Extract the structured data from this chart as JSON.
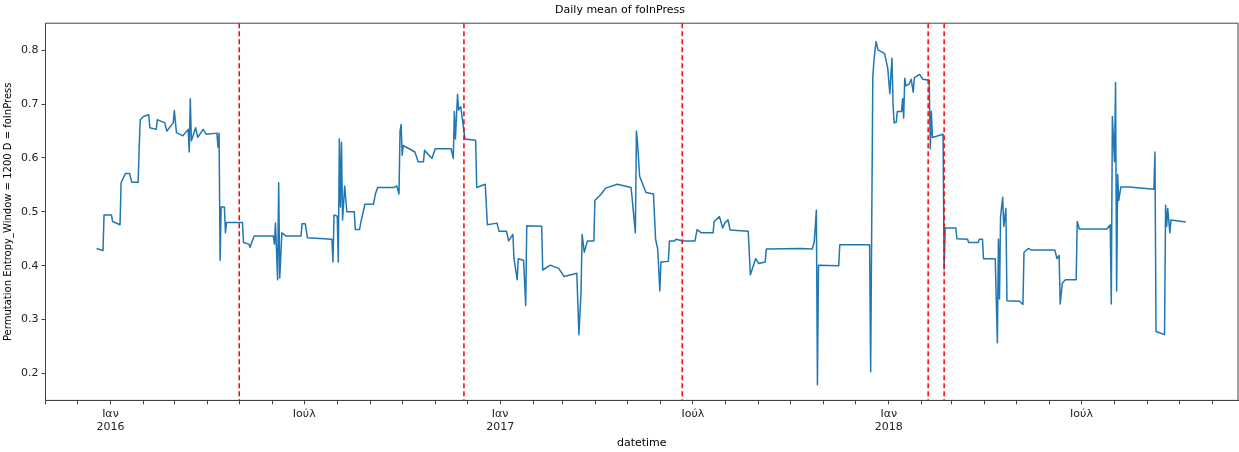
{
  "chart_data": {
    "type": "line",
    "title": "Daily mean of foInPress",
    "xlabel": "datetime",
    "ylabel": "Permutation Entropy_Window = 1200 D = foInPress",
    "xlim": [
      "2015-11-01",
      "2018-11-25"
    ],
    "xticks": [
      {
        "value": "2015-11-01",
        "label": null
      },
      {
        "value": "2015-12-01",
        "label": null
      },
      {
        "value": "2016-01-01",
        "label": "Ιαν\n2016"
      },
      {
        "value": "2016-02-01",
        "label": null
      },
      {
        "value": "2016-03-01",
        "label": null
      },
      {
        "value": "2016-04-01",
        "label": null
      },
      {
        "value": "2016-05-01",
        "label": null
      },
      {
        "value": "2016-06-01",
        "label": null
      },
      {
        "value": "2016-07-01",
        "label": "Ιούλ"
      },
      {
        "value": "2016-08-01",
        "label": null
      },
      {
        "value": "2016-09-01",
        "label": null
      },
      {
        "value": "2016-10-01",
        "label": null
      },
      {
        "value": "2016-11-01",
        "label": null
      },
      {
        "value": "2016-12-01",
        "label": null
      },
      {
        "value": "2017-01-01",
        "label": "Ιαν\n2017"
      },
      {
        "value": "2017-02-01",
        "label": null
      },
      {
        "value": "2017-03-01",
        "label": null
      },
      {
        "value": "2017-04-01",
        "label": null
      },
      {
        "value": "2017-05-01",
        "label": null
      },
      {
        "value": "2017-06-01",
        "label": null
      },
      {
        "value": "2017-07-01",
        "label": "Ιούλ"
      },
      {
        "value": "2017-08-01",
        "label": null
      },
      {
        "value": "2017-09-01",
        "label": null
      },
      {
        "value": "2017-10-01",
        "label": null
      },
      {
        "value": "2017-11-01",
        "label": null
      },
      {
        "value": "2017-12-01",
        "label": null
      },
      {
        "value": "2018-01-01",
        "label": "Ιαν\n2018"
      },
      {
        "value": "2018-02-01",
        "label": null
      },
      {
        "value": "2018-03-01",
        "label": null
      },
      {
        "value": "2018-04-01",
        "label": null
      },
      {
        "value": "2018-05-01",
        "label": null
      },
      {
        "value": "2018-06-01",
        "label": null
      },
      {
        "value": "2018-07-01",
        "label": "Ιούλ"
      },
      {
        "value": "2018-08-01",
        "label": null
      },
      {
        "value": "2018-09-01",
        "label": null
      },
      {
        "value": "2018-10-01",
        "label": null
      },
      {
        "value": "2018-11-01",
        "label": null
      }
    ],
    "ylim": [
      0.15,
      0.85
    ],
    "yticks": [
      0.2,
      0.3,
      0.4,
      0.5,
      0.6,
      0.7,
      0.8
    ],
    "grid": false,
    "legend": false,
    "marker": "none",
    "line_style": "solid",
    "ref_lines": [
      {
        "axis": "x",
        "value": "2016-05-01",
        "color": "#ff0000",
        "line_style": "dashed"
      },
      {
        "axis": "x",
        "value": "2016-11-28",
        "color": "#ff0000",
        "line_style": "dashed"
      },
      {
        "axis": "x",
        "value": "2017-06-21",
        "color": "#ff0000",
        "line_style": "dashed"
      },
      {
        "axis": "x",
        "value": "2018-02-07",
        "color": "#ff0000",
        "line_style": "dashed"
      },
      {
        "axis": "x",
        "value": "2018-02-22",
        "color": "#ff0000",
        "line_style": "dashed"
      }
    ],
    "series": [
      {
        "color": "#1f77b4",
        "x": [
          "2015-12-19",
          "2015-12-25",
          "2015-12-26",
          "2016-01-02",
          "2016-01-03",
          "2016-01-10",
          "2016-01-11",
          "2016-01-15",
          "2016-01-19",
          "2016-01-21",
          "2016-01-27",
          "2016-01-28",
          "2016-01-29",
          "2016-02-01",
          "2016-02-06",
          "2016-02-07",
          "2016-02-13",
          "2016-02-14",
          "2016-02-21",
          "2016-02-23",
          "2016-02-29",
          "2016-03-01",
          "2016-03-03",
          "2016-03-09",
          "2016-03-14",
          "2016-03-15",
          "2016-03-16",
          "2016-03-17",
          "2016-03-21",
          "2016-03-23",
          "2016-03-28",
          "2016-03-31",
          "2016-04-10",
          "2016-04-11",
          "2016-04-12",
          "2016-04-13",
          "2016-04-14",
          "2016-04-17",
          "2016-04-18",
          "2016-04-19",
          "2016-05-04",
          "2016-05-05",
          "2016-05-10",
          "2016-05-11",
          "2016-05-15",
          "2016-06-02",
          "2016-06-03",
          "2016-06-04",
          "2016-06-06",
          "2016-06-07",
          "2016-06-08",
          "2016-06-10",
          "2016-06-14",
          "2016-06-28",
          "2016-06-29",
          "2016-07-02",
          "2016-07-04",
          "2016-07-27",
          "2016-07-28",
          "2016-07-29",
          "2016-08-01",
          "2016-08-02",
          "2016-08-03",
          "2016-08-04",
          "2016-08-05",
          "2016-08-06",
          "2016-08-08",
          "2016-08-10",
          "2016-08-17",
          "2016-08-18",
          "2016-08-22",
          "2016-08-23",
          "2016-08-27",
          "2016-09-04",
          "2016-09-06",
          "2016-09-08",
          "2016-09-23",
          "2016-09-26",
          "2016-09-28",
          "2016-09-29",
          "2016-09-30",
          "2016-10-01",
          "2016-10-02",
          "2016-10-13",
          "2016-10-16",
          "2016-10-21",
          "2016-10-22",
          "2016-10-29",
          "2016-11-01",
          "2016-11-16",
          "2016-11-18",
          "2016-11-19",
          "2016-11-20",
          "2016-11-22",
          "2016-11-23",
          "2016-11-25",
          "2016-11-29",
          "2016-12-09",
          "2016-12-10",
          "2016-12-18",
          "2016-12-20",
          "2016-12-29",
          "2016-12-31",
          "2017-01-07",
          "2017-01-09",
          "2017-01-13",
          "2017-01-14",
          "2017-01-17",
          "2017-01-18",
          "2017-01-23",
          "2017-01-25",
          "2017-01-26",
          "2017-02-09",
          "2017-02-10",
          "2017-02-17",
          "2017-02-25",
          "2017-03-02",
          "2017-03-14",
          "2017-03-16",
          "2017-03-18",
          "2017-03-19",
          "2017-03-21",
          "2017-03-24",
          "2017-03-30",
          "2017-03-31",
          "2017-04-06",
          "2017-04-10",
          "2017-04-21",
          "2017-05-04",
          "2017-05-08",
          "2017-05-09",
          "2017-05-10",
          "2017-05-12",
          "2017-05-18",
          "2017-05-25",
          "2017-05-27",
          "2017-05-29",
          "2017-05-31",
          "2017-06-01",
          "2017-06-08",
          "2017-06-09",
          "2017-06-14",
          "2017-06-15",
          "2017-06-22",
          "2017-07-03",
          "2017-07-05",
          "2017-07-09",
          "2017-07-20",
          "2017-07-21",
          "2017-07-26",
          "2017-07-29",
          "2017-07-31",
          "2017-08-03",
          "2017-08-05",
          "2017-08-22",
          "2017-08-24",
          "2017-08-29",
          "2017-09-01",
          "2017-09-07",
          "2017-09-08",
          "2017-10-10",
          "2017-10-21",
          "2017-10-23",
          "2017-10-25",
          "2017-10-26",
          "2017-10-27",
          "2017-11-15",
          "2017-11-16",
          "2017-12-14",
          "2017-12-15",
          "2017-12-17",
          "2017-12-18",
          "2017-12-20",
          "2017-12-22",
          "2017-12-28",
          "2017-12-31",
          "2018-01-02",
          "2018-01-04",
          "2018-01-05",
          "2018-01-06",
          "2018-01-08",
          "2018-01-09",
          "2018-01-13",
          "2018-01-14",
          "2018-01-15",
          "2018-01-16",
          "2018-01-17",
          "2018-01-20",
          "2018-01-22",
          "2018-01-24",
          "2018-01-25",
          "2018-01-30",
          "2018-02-02",
          "2018-02-08",
          "2018-02-09",
          "2018-02-10",
          "2018-02-11",
          "2018-02-21",
          "2018-02-22",
          "2018-02-23",
          "2018-03-05",
          "2018-03-06",
          "2018-03-16",
          "2018-03-17",
          "2018-03-26",
          "2018-03-27",
          "2018-03-30",
          "2018-03-31",
          "2018-04-11",
          "2018-04-13",
          "2018-04-14",
          "2018-04-15",
          "2018-04-16",
          "2018-04-18",
          "2018-04-19",
          "2018-04-21",
          "2018-04-22",
          "2018-05-04",
          "2018-05-07",
          "2018-05-08",
          "2018-05-12",
          "2018-05-15",
          "2018-06-06",
          "2018-06-08",
          "2018-06-10",
          "2018-06-11",
          "2018-06-13",
          "2018-06-16",
          "2018-06-26",
          "2018-06-27",
          "2018-06-29",
          "2018-07-25",
          "2018-07-28",
          "2018-07-29",
          "2018-07-30",
          "2018-08-01",
          "2018-08-02",
          "2018-08-03",
          "2018-08-04",
          "2018-08-05",
          "2018-08-07",
          "2018-08-15",
          "2018-09-07",
          "2018-09-08",
          "2018-09-09",
          "2018-09-17",
          "2018-09-18",
          "2018-09-19",
          "2018-09-20",
          "2018-09-22",
          "2018-09-23",
          "2018-10-07"
        ],
        "values": [
          0.432,
          0.428,
          0.494,
          0.494,
          0.482,
          0.476,
          0.554,
          0.571,
          0.571,
          0.555,
          0.555,
          0.62,
          0.671,
          0.677,
          0.68,
          0.656,
          0.653,
          0.671,
          0.665,
          0.65,
          0.665,
          0.688,
          0.647,
          0.641,
          0.653,
          0.611,
          0.71,
          0.632,
          0.656,
          0.638,
          0.653,
          0.644,
          0.646,
          0.62,
          0.646,
          0.41,
          0.509,
          0.509,
          0.461,
          0.48,
          0.48,
          0.443,
          0.44,
          0.434,
          0.455,
          0.455,
          0.44,
          0.479,
          0.374,
          0.554,
          0.377,
          0.461,
          0.455,
          0.455,
          0.478,
          0.478,
          0.452,
          0.449,
          0.407,
          0.494,
          0.492,
          0.407,
          0.635,
          0.509,
          0.629,
          0.485,
          0.548,
          0.5,
          0.5,
          0.467,
          0.467,
          0.479,
          0.514,
          0.514,
          0.534,
          0.545,
          0.545,
          0.548,
          0.533,
          0.65,
          0.662,
          0.605,
          0.623,
          0.611,
          0.593,
          0.593,
          0.614,
          0.599,
          0.617,
          0.617,
          0.599,
          0.686,
          0.635,
          0.718,
          0.689,
          0.695,
          0.635,
          0.633,
          0.545,
          0.551,
          0.476,
          0.479,
          0.464,
          0.464,
          0.446,
          0.458,
          0.413,
          0.374,
          0.413,
          0.41,
          0.326,
          0.474,
          0.473,
          0.392,
          0.401,
          0.395,
          0.38,
          0.386,
          0.272,
          0.353,
          0.458,
          0.425,
          0.446,
          0.446,
          0.521,
          0.533,
          0.544,
          0.551,
          0.545,
          0.461,
          0.65,
          0.629,
          0.566,
          0.536,
          0.533,
          0.449,
          0.431,
          0.353,
          0.407,
          0.408,
          0.446,
          0.446,
          0.449,
          0.446,
          0.446,
          0.467,
          0.461,
          0.461,
          0.482,
          0.491,
          0.47,
          0.479,
          0.485,
          0.466,
          0.464,
          0.383,
          0.413,
          0.404,
          0.407,
          0.431,
          0.432,
          0.431,
          0.444,
          0.503,
          0.179,
          0.401,
          0.4,
          0.439,
          0.439,
          0.203,
          0.749,
          0.779,
          0.816,
          0.8,
          0.794,
          0.767,
          0.719,
          0.785,
          0.701,
          0.665,
          0.666,
          0.686,
          0.686,
          0.71,
          0.674,
          0.748,
          0.734,
          0.737,
          0.746,
          0.722,
          0.749,
          0.755,
          0.746,
          0.744,
          0.617,
          0.686,
          0.638,
          0.644,
          0.393,
          0.47,
          0.47,
          0.45,
          0.449,
          0.443,
          0.443,
          0.449,
          0.449,
          0.413,
          0.413,
          0.257,
          0.449,
          0.338,
          0.491,
          0.527,
          0.473,
          0.506,
          0.335,
          0.334,
          0.328,
          0.425,
          0.432,
          0.429,
          0.429,
          0.413,
          0.419,
          0.329,
          0.368,
          0.374,
          0.374,
          0.482,
          0.468,
          0.468,
          0.476,
          0.329,
          0.677,
          0.593,
          0.74,
          0.353,
          0.569,
          0.521,
          0.546,
          0.546,
          0.542,
          0.611,
          0.278,
          0.272,
          0.512,
          0.473,
          0.506,
          0.461,
          0.485,
          0.481
        ]
      }
    ]
  }
}
